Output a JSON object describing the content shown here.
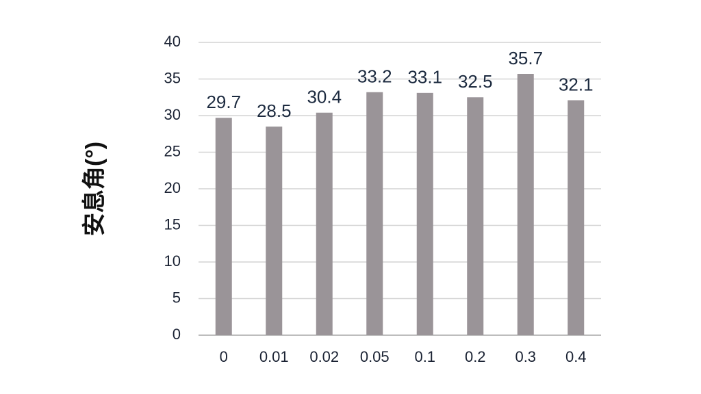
{
  "chart_data": {
    "type": "bar",
    "y_label": "安息角(°)",
    "categories": [
      "0",
      "0.01",
      "0.02",
      "0.05",
      "0.1",
      "0.2",
      "0.3",
      "0.4"
    ],
    "values": [
      29.7,
      28.5,
      30.4,
      33.2,
      33.1,
      32.5,
      35.7,
      32.1
    ],
    "color": "#9a9498",
    "ylim": [
      0,
      40
    ],
    "yticks": [
      0,
      5,
      10,
      15,
      20,
      25,
      30,
      35,
      40
    ],
    "grid": true
  }
}
